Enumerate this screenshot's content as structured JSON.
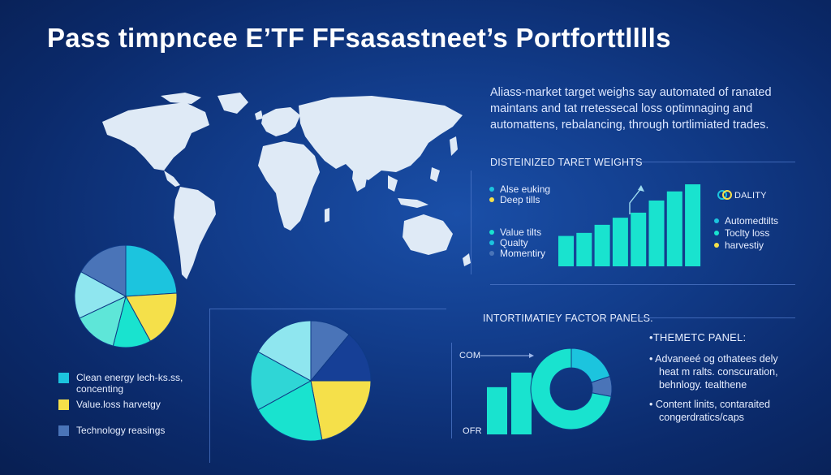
{
  "title": "Pass timpncee  E’TF FFsasastneet’s Portforttlllls",
  "intro_lines": [
    "Aliass-market target weighs say automated of ranated",
    "maintans and tat rretessecal loss optimnaging and",
    "automattens, rebalancing, through tortlimiated trades."
  ],
  "colors": {
    "teal": "#19e3cf",
    "light_cyan": "#8fe6ef",
    "cyan": "#1cc4de",
    "yellow": "#f5e04a",
    "steel_blue": "#4a74b8",
    "navy": "#163f96"
  },
  "target_weights": {
    "heading": "DISTEINIZED TARET WEIGHTS",
    "legend_top": [
      {
        "label": "Alse euking",
        "color": "#1cc4de"
      },
      {
        "label": "Deep tills",
        "color": "#f5e04a"
      }
    ],
    "legend_bottom": [
      {
        "label": "Value tilts",
        "color": "#19e3cf"
      },
      {
        "label": "Qualty",
        "color": "#1cc4de"
      },
      {
        "label": "Momentiry",
        "color": "#4a74b8"
      }
    ],
    "badge": "DALITY",
    "legend_right": [
      {
        "label": "Automedtilts",
        "color": "#1cc4de"
      },
      {
        "label": "Toclty loss",
        "color": "#19e3cf"
      },
      {
        "label": "harvestiy",
        "color": "#f5e04a"
      }
    ]
  },
  "factor_panel": {
    "heading": "INTORTIMATIEY FACTOR PANELS.",
    "label_top": "COM",
    "label_bottom": "OFR"
  },
  "thematic_panel": {
    "heading": "•THEMETC PANEL:",
    "bullets": [
      [
        "• Advaneeé og othatees dely",
        "heat m ralts. conscuration,",
        "behnlogy. tealthene"
      ],
      [
        "• Content linits, contaraited",
        "congerdratics/caps"
      ]
    ]
  },
  "left_legend": [
    {
      "label": "Clean energy lech-ks.ss,",
      "sublabel": "concenting",
      "color": "#1cc4de"
    },
    {
      "label": "Value.loss harvetgy",
      "sublabel": "",
      "color": "#f5e04a"
    },
    {
      "label": "Technology reasings",
      "sublabel": "",
      "color": "#4a74b8"
    }
  ],
  "chart_data": [
    {
      "type": "pie",
      "name_ref": "left-pie",
      "slices": [
        {
          "value": 24,
          "color": "#1cc4de"
        },
        {
          "value": 18,
          "color": "#f5e04a"
        },
        {
          "value": 12,
          "color": "#19e3cf"
        },
        {
          "value": 14,
          "color": "#5ee6d8"
        },
        {
          "value": 15,
          "color": "#8fe6ef"
        },
        {
          "value": 17,
          "color": "#4a74b8"
        }
      ]
    },
    {
      "type": "pie",
      "name_ref": "center-pie",
      "slices": [
        {
          "value": 11,
          "color": "#4a74b8"
        },
        {
          "value": 14,
          "color": "#163f96"
        },
        {
          "value": 22,
          "color": "#f5e04a"
        },
        {
          "value": 20,
          "color": "#19e3cf"
        },
        {
          "value": 16,
          "color": "#2fd6d6"
        },
        {
          "value": 17,
          "color": "#8fe6ef"
        }
      ]
    },
    {
      "type": "bar",
      "name_ref": "target-weights-bars",
      "values": [
        3,
        3.3,
        4.1,
        4.8,
        5.3,
        6.5,
        7.4,
        8.1
      ],
      "ylim": [
        0,
        8.5
      ],
      "color": "#19e3cf"
    },
    {
      "type": "bar",
      "name_ref": "factor-bars",
      "values": [
        4.2,
        5.5
      ],
      "ylim": [
        0,
        6.5
      ],
      "color": "#19e3cf"
    },
    {
      "type": "pie",
      "name_ref": "factor-donut",
      "slices": [
        {
          "value": 20,
          "color": "#1cc4de"
        },
        {
          "value": 8,
          "color": "#4a74b8"
        },
        {
          "value": 72,
          "color": "#19e3cf"
        }
      ]
    }
  ]
}
